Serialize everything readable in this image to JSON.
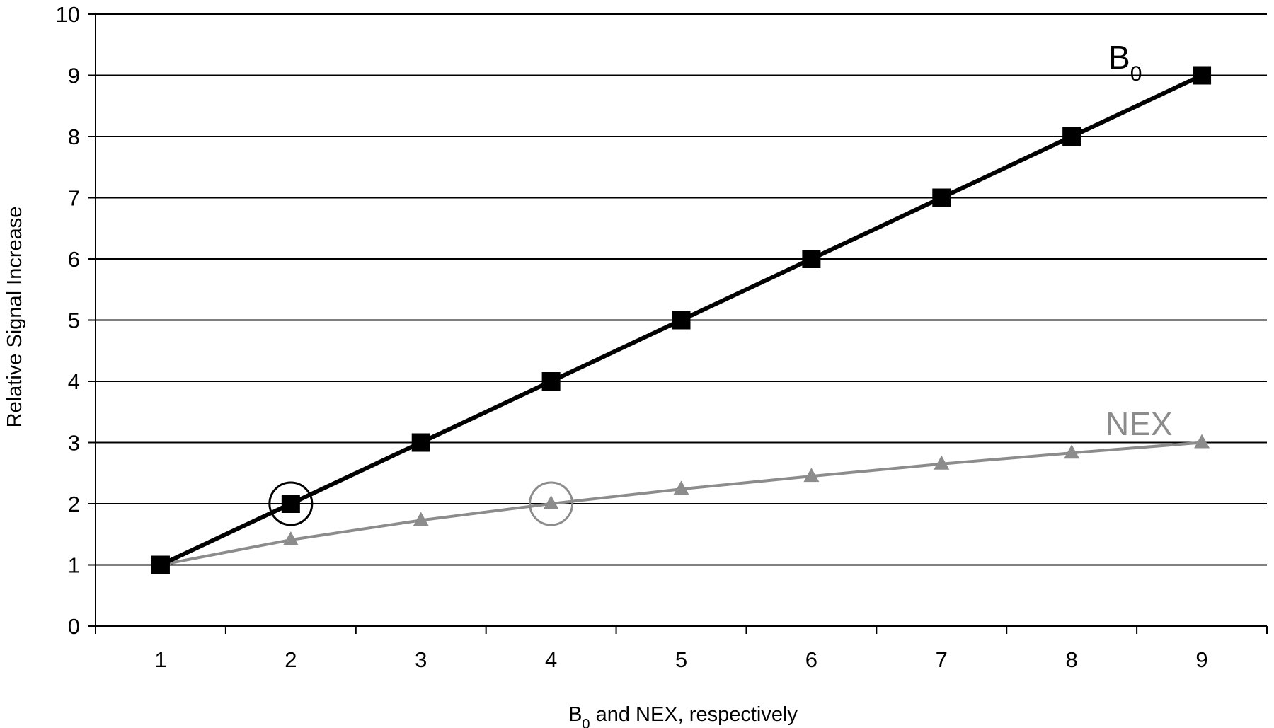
{
  "chart_data": {
    "type": "line",
    "x": [
      1,
      2,
      3,
      4,
      5,
      6,
      7,
      8,
      9
    ],
    "xlabel": {
      "base": "B",
      "sub": "0",
      "rest": " and NEX, respectively"
    },
    "ylabel": "Relative Signal Increase",
    "xlim": [
      0.5,
      9.5
    ],
    "ylim": [
      0,
      10
    ],
    "yticks": [
      0,
      1,
      2,
      3,
      4,
      5,
      6,
      7,
      8,
      9,
      10
    ],
    "xticks": [
      1,
      2,
      3,
      4,
      5,
      6,
      7,
      8,
      9
    ],
    "grid": "horizontal",
    "series": [
      {
        "name": {
          "base": "B",
          "sub": "0"
        },
        "marker": "square",
        "color": "#000000",
        "values": [
          1,
          2,
          3,
          4,
          5,
          6,
          7,
          8,
          9
        ]
      },
      {
        "name": {
          "base": "NEX",
          "sub": ""
        },
        "marker": "triangle",
        "color": "#8c8c8c",
        "values": [
          1,
          1.41,
          1.73,
          2,
          2.24,
          2.45,
          2.65,
          2.83,
          3
        ]
      }
    ],
    "highlights": [
      {
        "series": 0,
        "x": 2,
        "y": 2
      },
      {
        "series": 1,
        "x": 4,
        "y": 2
      }
    ]
  }
}
